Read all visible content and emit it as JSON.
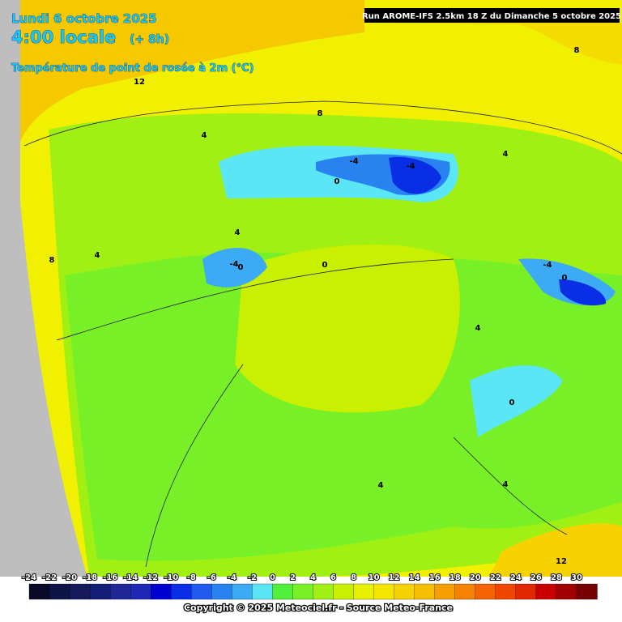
{
  "header": {
    "date": "Lundi 6 octobre 2025",
    "time": "4:00 locale",
    "lead": "(+ 8h)",
    "variable": "Température de point de rosée à 2m (°C)",
    "run": "Run AROME-IFS 2.5km 18 Z du Dimanche 5 octobre 2025"
  },
  "legend": {
    "ticks": [
      -24,
      -22,
      -20,
      -18,
      -16,
      -14,
      -12,
      -10,
      -8,
      -6,
      -4,
      -2,
      0,
      2,
      4,
      6,
      8,
      10,
      12,
      14,
      16,
      18,
      20,
      22,
      24,
      26,
      28,
      30
    ],
    "colors": [
      "#0a0a28",
      "#0f1446",
      "#141a5a",
      "#141e78",
      "#1e2896",
      "#1e28b4",
      "#0000d2",
      "#0a2ee6",
      "#1e5af0",
      "#2882f0",
      "#3caaf5",
      "#5ae6f5",
      "#50f03c",
      "#78f028",
      "#a0f014",
      "#c8f000",
      "#e6f000",
      "#f5e600",
      "#f5d200",
      "#f5be00",
      "#f5a000",
      "#f58200",
      "#f56400",
      "#f04600",
      "#e12800",
      "#c80000",
      "#a00000",
      "#780000"
    ]
  },
  "contour_labels": [
    "12",
    "8",
    "8",
    "4",
    "4",
    "4",
    "4",
    "0",
    "-4",
    "-4",
    "0",
    "-4",
    "0",
    "-4",
    "4",
    "0",
    "0",
    "4",
    "4",
    "12",
    "8"
  ],
  "copyright": "Copyright © 2025 Meteociel.fr - Source Meteo-France"
}
